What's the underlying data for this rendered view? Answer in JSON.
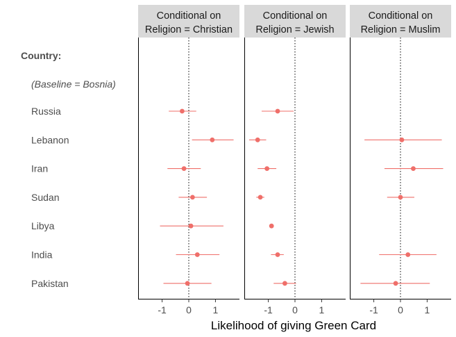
{
  "chart_data": {
    "type": "scatter",
    "subtype": "coefficient-plot-faceted",
    "title": "",
    "xlabel": "Likelihood of giving Green Card",
    "ylabel": "",
    "xlim": [
      -1.9,
      1.9
    ],
    "xticks": [
      -1,
      0,
      1
    ],
    "reference_line_x": 0,
    "grid": false,
    "point_color": "#ef6f6a",
    "row_header": "Country:",
    "baseline_label": "(Baseline = Bosnia)",
    "categories": [
      "Russia",
      "Lebanon",
      "Iran",
      "Sudan",
      "Libya",
      "India",
      "Pakistan"
    ],
    "facets": [
      {
        "label_line1": "Conditional on",
        "label_line2": "Religion = Christian",
        "points": [
          {
            "category": "Russia",
            "estimate": -0.25,
            "lower": -0.75,
            "upper": 0.28
          },
          {
            "category": "Lebanon",
            "estimate": 0.88,
            "lower": 0.12,
            "upper": 1.68
          },
          {
            "category": "Iran",
            "estimate": -0.18,
            "lower": -0.8,
            "upper": 0.45
          },
          {
            "category": "Sudan",
            "estimate": 0.14,
            "lower": -0.38,
            "upper": 0.68
          },
          {
            "category": "Libya",
            "estimate": 0.08,
            "lower": -1.08,
            "upper": 1.3
          },
          {
            "category": "India",
            "estimate": 0.32,
            "lower": -0.48,
            "upper": 1.15
          },
          {
            "category": "Pakistan",
            "estimate": -0.05,
            "lower": -0.95,
            "upper": 0.85
          }
        ]
      },
      {
        "label_line1": "Conditional on",
        "label_line2": "Religion = Jewish",
        "points": [
          {
            "category": "Russia",
            "estimate": -0.65,
            "lower": -1.25,
            "upper": -0.05
          },
          {
            "category": "Lebanon",
            "estimate": -1.4,
            "lower": -1.72,
            "upper": -1.08
          },
          {
            "category": "Iran",
            "estimate": -1.05,
            "lower": -1.4,
            "upper": -0.7
          },
          {
            "category": "Sudan",
            "estimate": -1.3,
            "lower": -1.45,
            "upper": -1.15
          },
          {
            "category": "Libya",
            "estimate": -0.88,
            "lower": -0.95,
            "upper": -0.81
          },
          {
            "category": "India",
            "estimate": -0.65,
            "lower": -0.9,
            "upper": -0.42
          },
          {
            "category": "Pakistan",
            "estimate": -0.38,
            "lower": -0.8,
            "upper": 0.04
          }
        ]
      },
      {
        "label_line1": "Conditional on",
        "label_line2": "Religion = Muslim",
        "points": [
          {
            "category": "Lebanon",
            "estimate": 0.05,
            "lower": -1.35,
            "upper": 1.55
          },
          {
            "category": "Iran",
            "estimate": 0.48,
            "lower": -0.6,
            "upper": 1.6
          },
          {
            "category": "Sudan",
            "estimate": 0.0,
            "lower": -0.5,
            "upper": 0.52
          },
          {
            "category": "India",
            "estimate": 0.28,
            "lower": -0.8,
            "upper": 1.35
          },
          {
            "category": "Pakistan",
            "estimate": -0.18,
            "lower": -1.5,
            "upper": 1.1
          }
        ]
      }
    ]
  }
}
